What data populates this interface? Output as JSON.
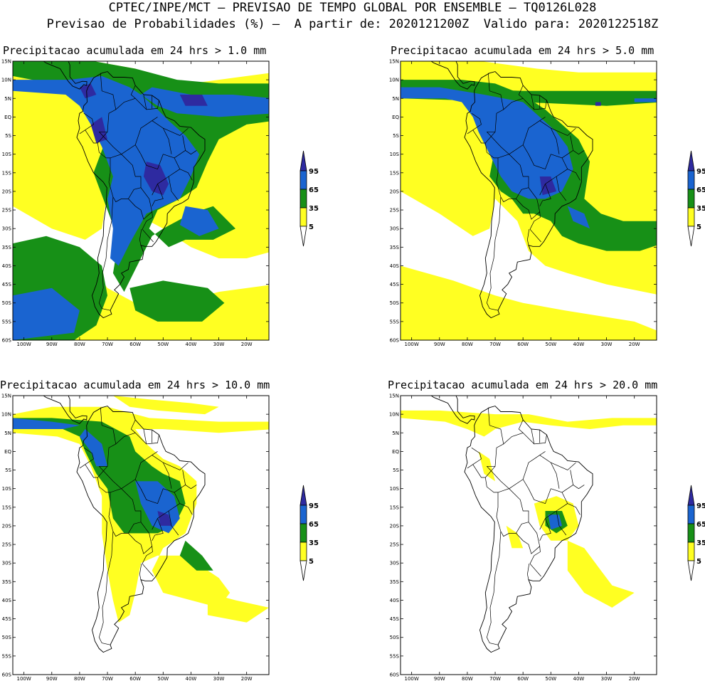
{
  "header": {
    "line1": "CPTEC/INPE/MCT — PREVISAO DE TEMPO GLOBAL POR ENSEMBLE — TQ0126L028",
    "line2": "Previsao de Probabilidades (%) —  A partir de: 2020121200Z  Valido para: 2020122518Z"
  },
  "panels": [
    {
      "title": "Precipitacao acumulada em 24 hrs > 1.0 mm"
    },
    {
      "title": "Precipitacao acumulada em 24 hrs > 5.0 mm"
    },
    {
      "title": "Precipitacao acumulada em 24 hrs > 10.0 mm"
    },
    {
      "title": "Precipitacao acumulada em 24 hrs > 20.0 mm"
    }
  ],
  "axes": {
    "lat_labels": [
      "15N",
      "10N",
      "5N",
      "EQ",
      "5S",
      "10S",
      "15S",
      "20S",
      "25S",
      "30S",
      "35S",
      "40S",
      "45S",
      "50S",
      "55S",
      "60S"
    ],
    "lon_labels": [
      "100W",
      "90W",
      "80W",
      "70W",
      "60W",
      "50W",
      "40W",
      "30W",
      "20W"
    ]
  },
  "colorbar": {
    "labels": [
      "95",
      "65",
      "35",
      "5"
    ],
    "colors": {
      "c95": "#2e2aa0",
      "c65": "#1a64d0",
      "c35": "#179017",
      "c5": "#ffff22"
    }
  }
}
